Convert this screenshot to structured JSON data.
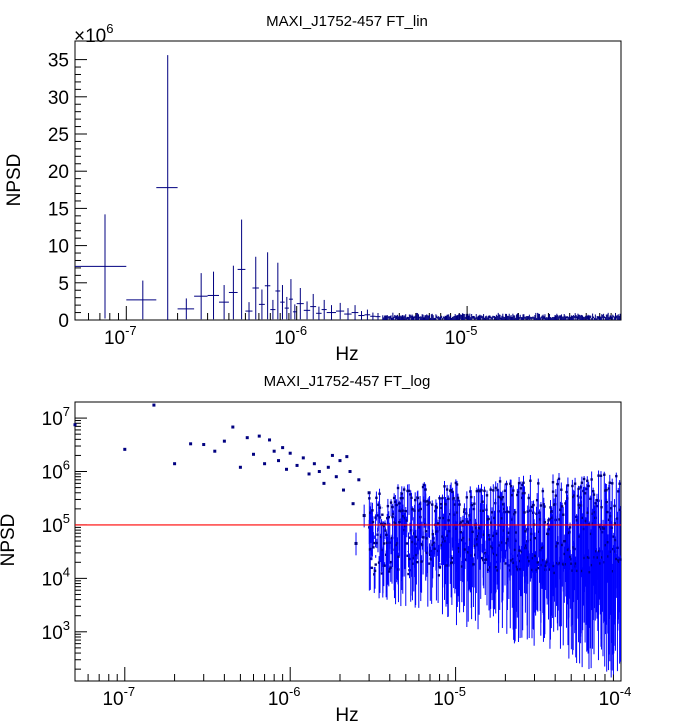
{
  "chart_data": [
    {
      "type": "scatter",
      "title": "MAXI_J1752-457 FT_lin",
      "xlabel": "Hz",
      "ylabel": "NPSD",
      "x_scale": "log",
      "y_scale": "linear",
      "xlim": [
        5e-08,
        8e-05
      ],
      "ylim": [
        0,
        37.5
      ],
      "y_multiplier": "×10^6",
      "x_tick_labels": [
        "10^-7",
        "10^-6",
        "10^-5"
      ],
      "y_tick_labels": [
        "0",
        "5",
        "10",
        "15",
        "20",
        "25",
        "30",
        "35"
      ],
      "grid": false,
      "series": [
        {
          "color": "#000080",
          "points": [
            {
              "x": 7.5e-08,
              "y": 7.2,
              "err": 7.0,
              "xlo": 5e-08,
              "xhi": 1e-07
            },
            {
              "x": 1.25e-07,
              "y": 2.7,
              "err": 2.6,
              "xlo": 1e-07,
              "xhi": 1.5e-07
            },
            {
              "x": 1.75e-07,
              "y": 17.8,
              "err": 17.8,
              "xlo": 1.5e-07,
              "xhi": 2e-07
            },
            {
              "x": 2.25e-07,
              "y": 1.5,
              "err": 1.4,
              "xlo": 2e-07,
              "xhi": 2.5e-07
            },
            {
              "x": 2.75e-07,
              "y": 3.2,
              "err": 3.1,
              "xlo": 2.5e-07,
              "xhi": 3e-07
            },
            {
              "x": 3.25e-07,
              "y": 3.3,
              "err": 3.2,
              "xlo": 3e-07,
              "xhi": 3.5e-07
            },
            {
              "x": 3.75e-07,
              "y": 2.4,
              "err": 2.3,
              "xlo": 3.5e-07,
              "xhi": 4e-07
            },
            {
              "x": 4.25e-07,
              "y": 3.7,
              "err": 3.6,
              "xlo": 4e-07,
              "xhi": 4.5e-07
            },
            {
              "x": 4.75e-07,
              "y": 6.8,
              "err": 6.7,
              "xlo": 4.5e-07,
              "xhi": 5e-07
            },
            {
              "x": 5.25e-07,
              "y": 1.2,
              "err": 1.2,
              "xlo": 5e-07,
              "xhi": 5.5e-07
            },
            {
              "x": 5.75e-07,
              "y": 4.3,
              "err": 4.2,
              "xlo": 5.5e-07,
              "xhi": 6e-07
            },
            {
              "x": 6.25e-07,
              "y": 2.1,
              "err": 2.0,
              "xlo": 6e-07,
              "xhi": 6.5e-07
            },
            {
              "x": 6.75e-07,
              "y": 4.6,
              "err": 4.5,
              "xlo": 6.5e-07,
              "xhi": 7e-07
            },
            {
              "x": 7.25e-07,
              "y": 1.4,
              "err": 1.3,
              "xlo": 7e-07,
              "xhi": 7.5e-07
            },
            {
              "x": 7.75e-07,
              "y": 3.9,
              "err": 3.8,
              "xlo": 7.5e-07,
              "xhi": 8e-07
            },
            {
              "x": 8.25e-07,
              "y": 2.4,
              "err": 2.3,
              "xlo": 8e-07,
              "xhi": 8.5e-07
            },
            {
              "x": 8.75e-07,
              "y": 1.6,
              "err": 1.5,
              "xlo": 8.5e-07,
              "xhi": 9e-07
            },
            {
              "x": 9.25e-07,
              "y": 2.8,
              "err": 2.7,
              "xlo": 9e-07,
              "xhi": 9.5e-07
            },
            {
              "x": 9.75e-07,
              "y": 1.1,
              "err": 1.0,
              "xlo": 9.5e-07,
              "xhi": 1e-06
            },
            {
              "x": 1.05e-06,
              "y": 2.2,
              "err": 2.1,
              "xlo": 1e-06,
              "xhi": 1.1e-06
            },
            {
              "x": 1.15e-06,
              "y": 1.3,
              "err": 1.2,
              "xlo": 1.1e-06,
              "xhi": 1.2e-06
            },
            {
              "x": 1.25e-06,
              "y": 1.8,
              "err": 1.7,
              "xlo": 1.2e-06,
              "xhi": 1.3e-06
            },
            {
              "x": 1.35e-06,
              "y": 0.9,
              "err": 0.9,
              "xlo": 1.3e-06,
              "xhi": 1.4e-06
            },
            {
              "x": 1.45e-06,
              "y": 1.4,
              "err": 1.3,
              "xlo": 1.4e-06,
              "xhi": 1.5e-06
            },
            {
              "x": 1.6e-06,
              "y": 1.0,
              "err": 1.0,
              "xlo": 1.5e-06,
              "xhi": 1.7e-06
            },
            {
              "x": 1.8e-06,
              "y": 1.2,
              "err": 1.1,
              "xlo": 1.7e-06,
              "xhi": 1.9e-06
            },
            {
              "x": 2e-06,
              "y": 0.8,
              "err": 0.8,
              "xlo": 1.9e-06,
              "xhi": 2.1e-06
            },
            {
              "x": 2.2e-06,
              "y": 1.0,
              "err": 1.0,
              "xlo": 2.1e-06,
              "xhi": 2.3e-06
            },
            {
              "x": 2.4e-06,
              "y": 0.6,
              "err": 0.6,
              "xlo": 2.3e-06,
              "xhi": 2.5e-06
            },
            {
              "x": 2.6e-06,
              "y": 0.7,
              "err": 0.7,
              "xlo": 2.5e-06,
              "xhi": 2.7e-06
            },
            {
              "x": 2.8e-06,
              "y": 0.5,
              "err": 0.5,
              "xlo": 2.7e-06,
              "xhi": 2.9e-06
            },
            {
              "x": 3e-06,
              "y": 0.45,
              "err": 0.45,
              "xlo": 2.9e-06,
              "xhi": 3.1e-06
            }
          ]
        }
      ],
      "tail": {
        "from_x": 3.2e-06,
        "to_x": 8e-05,
        "typical_y": 0.3,
        "typical_err": 0.3
      }
    },
    {
      "type": "scatter",
      "title": "MAXI_J1752-457 FT_log",
      "xlabel": "Hz",
      "ylabel": "NPSD",
      "x_scale": "log",
      "y_scale": "log",
      "xlim": [
        5e-08,
        0.0001
      ],
      "ylim": [
        120,
        20000000.0
      ],
      "x_tick_labels": [
        "10^-7",
        "10^-6",
        "10^-5",
        "10^-4"
      ],
      "y_tick_labels": [
        "10^3",
        "10^4",
        "10^5",
        "10^6",
        "10^7"
      ],
      "grid": false,
      "reference_line": {
        "y": 100000.0,
        "color": "#ff0000"
      },
      "series": [
        {
          "color": "#0000ff",
          "marker_color": "#000080",
          "points": [
            {
              "x": 5e-08,
              "y": 7500000.0
            },
            {
              "x": 1e-07,
              "y": 2600000.0
            },
            {
              "x": 1.5e-07,
              "y": 17500000.0
            },
            {
              "x": 2e-07,
              "y": 1400000.0
            },
            {
              "x": 2.5e-07,
              "y": 3300000.0
            },
            {
              "x": 3e-07,
              "y": 3200000.0
            },
            {
              "x": 3.5e-07,
              "y": 2400000.0
            },
            {
              "x": 4e-07,
              "y": 3700000.0
            },
            {
              "x": 4.5e-07,
              "y": 6800000.0
            },
            {
              "x": 5e-07,
              "y": 1200000.0
            },
            {
              "x": 5.5e-07,
              "y": 4300000.0
            },
            {
              "x": 6e-07,
              "y": 2100000.0
            },
            {
              "x": 6.5e-07,
              "y": 4600000.0
            },
            {
              "x": 7e-07,
              "y": 1400000.0
            },
            {
              "x": 7.5e-07,
              "y": 3900000.0
            },
            {
              "x": 8e-07,
              "y": 2400000.0
            },
            {
              "x": 8.5e-07,
              "y": 1600000.0
            },
            {
              "x": 9e-07,
              "y": 2800000.0
            },
            {
              "x": 9.5e-07,
              "y": 1100000.0
            },
            {
              "x": 1e-06,
              "y": 2200000.0
            },
            {
              "x": 1.1e-06,
              "y": 1300000.0
            },
            {
              "x": 1.2e-06,
              "y": 1800000.0
            },
            {
              "x": 1.3e-06,
              "y": 900000.0
            },
            {
              "x": 1.4e-06,
              "y": 1400000.0
            },
            {
              "x": 1.5e-06,
              "y": 1000000.0
            },
            {
              "x": 1.6e-06,
              "y": 600000.0
            },
            {
              "x": 1.7e-06,
              "y": 1200000.0
            },
            {
              "x": 1.8e-06,
              "y": 2000000.0
            },
            {
              "x": 1.9e-06,
              "y": 800000.0
            },
            {
              "x": 2e-06,
              "y": 1600000.0
            },
            {
              "x": 2.1e-06,
              "y": 450000.0
            },
            {
              "x": 2.2e-06,
              "y": 1900000.0
            },
            {
              "x": 2.3e-06,
              "y": 1000000.0
            },
            {
              "x": 2.4e-06,
              "y": 250000.0
            },
            {
              "x": 2.5e-06,
              "y": 45000.0
            },
            {
              "x": 2.6e-06,
              "y": 700000.0
            },
            {
              "x": 2.8e-06,
              "y": 150000.0
            },
            {
              "x": 3e-06,
              "y": 400000.0
            }
          ]
        }
      ],
      "noise_region": {
        "from_x": 3e-06,
        "to_x": 0.0001,
        "ymin": 120,
        "ymax": 650000.0
      }
    }
  ]
}
